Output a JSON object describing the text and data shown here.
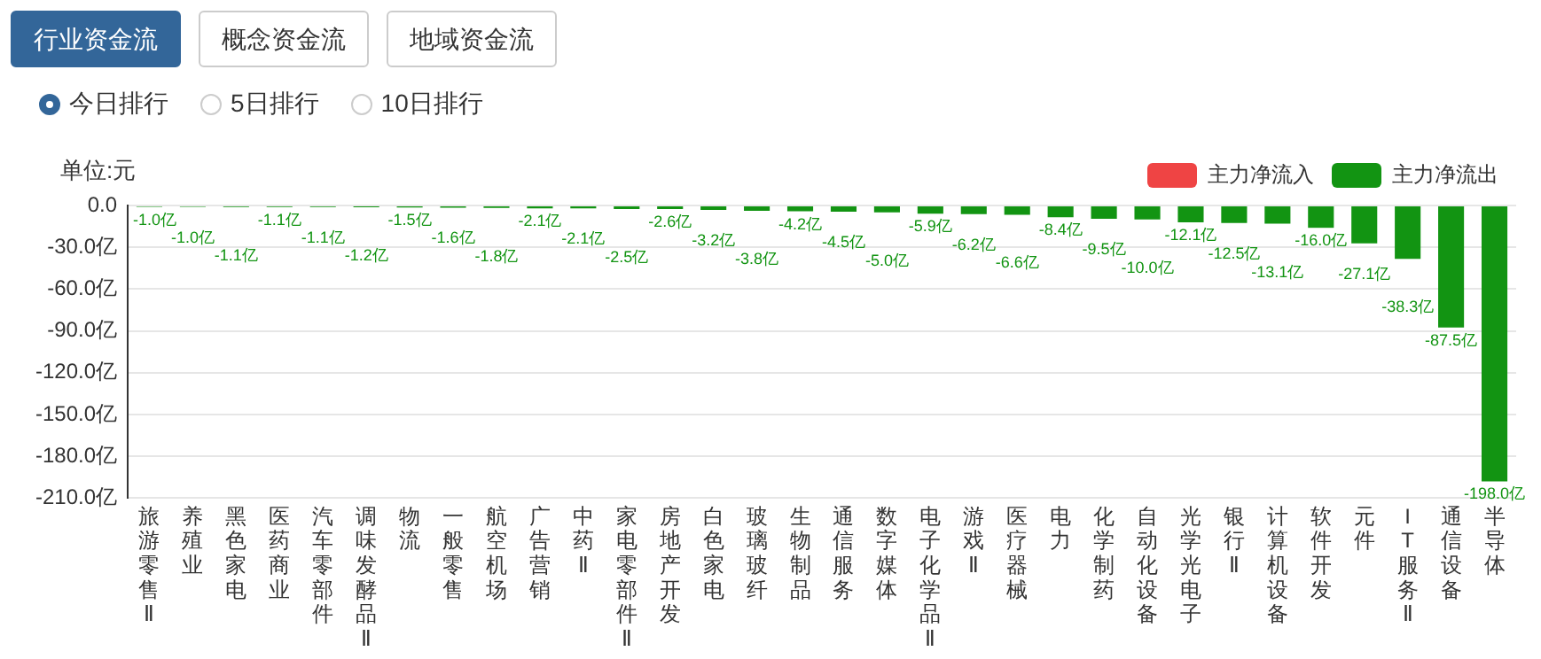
{
  "chart_data": {
    "type": "bar",
    "ylabel": "单位:元",
    "stacked": true,
    "legend": "top right",
    "grid": "y",
    "annotations": [
      "行业资金流",
      "概念资金流",
      "地域资金流",
      "今日排行",
      "5日排行",
      "10日排行"
    ],
    "categories": [
      "旅游零售Ⅱ",
      "养殖业",
      "黑色家电",
      "医药商业",
      "汽车零部件",
      "调味发酵品Ⅱ",
      "物流",
      "一般零售",
      "航空机场",
      "广告营销",
      "中药Ⅱ",
      "家电零部件Ⅱ",
      "房地产开发",
      "白色家电",
      "玻璃玻纤",
      "生物制品",
      "通信服务",
      "数字媒体",
      "电子化学品Ⅱ",
      "游戏Ⅱ",
      "医疗器械",
      "电力",
      "化学制药",
      "自动化设备",
      "光学光电子",
      "银行Ⅱ",
      "计算机设备",
      "软件开发",
      "元件",
      "IT服务Ⅱ",
      "通信设备",
      "半导体"
    ],
    "series": [
      {
        "name": "主力净流入",
        "color": "#ef4444",
        "values": [
          null,
          null,
          null,
          null,
          null,
          null,
          null,
          null,
          null,
          null,
          null,
          null,
          null,
          null,
          null,
          null,
          null,
          null,
          null,
          null,
          null,
          null,
          null,
          null,
          null,
          null,
          null,
          null,
          null,
          null,
          null,
          null
        ]
      },
      {
        "name": "主力净流出",
        "color": "#129412",
        "values": [
          -1.0,
          -1.0,
          -1.1,
          -1.1,
          -1.1,
          -1.2,
          -1.5,
          -1.6,
          -1.8,
          -2.1,
          -2.1,
          -2.5,
          -2.6,
          -3.2,
          -3.8,
          -4.2,
          -4.5,
          -5.0,
          -5.9,
          -6.2,
          -6.6,
          -8.4,
          -9.5,
          -10.0,
          -12.1,
          -12.5,
          -13.1,
          -16.0,
          -27.1,
          -38.3,
          -87.5,
          -198.0
        ],
        "value_labels": [
          "-1.0亿",
          "-1.0亿",
          "-1.1亿",
          "-1.1亿",
          "-1.1亿",
          "-1.2亿",
          "-1.5亿",
          "-1.6亿",
          "-1.8亿",
          "-2.1亿",
          "-2.1亿",
          "-2.5亿",
          "-2.6亿",
          "-3.2亿",
          "-3.8亿",
          "-4.2亿",
          "-4.5亿",
          "-5.0亿",
          "-5.9亿",
          "-6.2亿",
          "-6.6亿",
          "-8.4亿",
          "-9.5亿",
          "-10.0亿",
          "-12.1亿",
          "-12.5亿",
          "-13.1亿",
          "-16.0亿",
          "-27.1亿",
          "-38.3亿",
          "-87.5亿",
          "-198.0亿"
        ]
      }
    ],
    "ylim": [
      -210,
      0
    ],
    "yticks": [
      {
        "value": 0,
        "label": "0.0"
      },
      {
        "value": -30,
        "label": "-30.0亿"
      },
      {
        "value": -60,
        "label": "-60.0亿"
      },
      {
        "value": -90,
        "label": "-90.0亿"
      },
      {
        "value": -120,
        "label": "-120.0亿"
      },
      {
        "value": -150,
        "label": "-150.0亿"
      },
      {
        "value": -180,
        "label": "-180.0亿"
      },
      {
        "value": -210,
        "label": "-210.0亿"
      }
    ]
  }
}
